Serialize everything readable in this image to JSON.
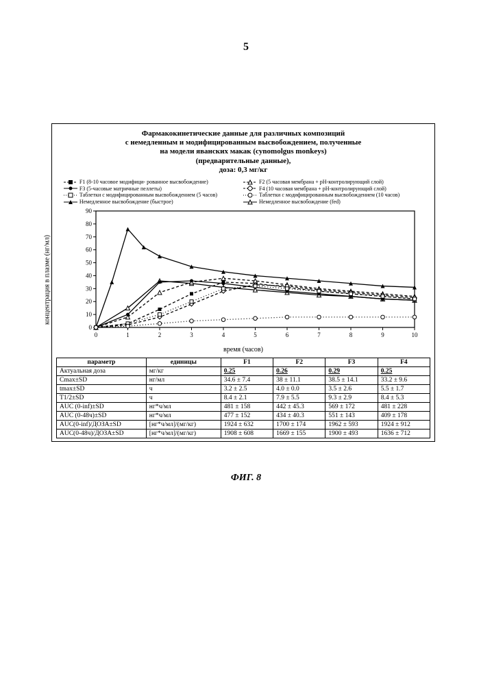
{
  "page_number": "5",
  "figure_caption": "ФИГ. 8",
  "title_lines": [
    "Фармакокинетические данные для различных композиций",
    "с немедленным и модифицированным высвобождением, полученные",
    "на модели яванских макак (cynomolgus monkeys)",
    "(предварительные данные),",
    "доза: 0,3 мг/кг"
  ],
  "legend": [
    {
      "marker": "dash-sq",
      "text": "F1 (8-10 часовое модифици-\nрованное высвобождение)"
    },
    {
      "marker": "dash-tri",
      "text": "F2 (5 часовая мембрана + pH-контролирующий слой)"
    },
    {
      "marker": "line-dot",
      "text": "F3 (5-часовые матричные пеллеты)"
    },
    {
      "marker": "dash-dia",
      "text": "F4 (10 часовая мембрана + pH-контролирующий слой)"
    },
    {
      "marker": "sq",
      "text": "Таблетки с модифицированным\nвысвобождением (5 часов)"
    },
    {
      "marker": "circ",
      "text": "Таблетки с модифицированным высвобождением (10 часов)"
    },
    {
      "marker": "tri-fill",
      "text": "Немедленное высвобождение\n(быстрое)"
    },
    {
      "marker": "tri-open",
      "text": "Немедленное высвобождение (fed)"
    }
  ],
  "chart": {
    "type": "line",
    "ylabel": "концентрация в плазме (нг/мл)",
    "xlabel": "время (часов)",
    "xlim": [
      0,
      10
    ],
    "xtick_step": 1,
    "ylim": [
      0,
      90
    ],
    "ytick_step": 10,
    "background": "#ffffff",
    "axis_color": "#000000",
    "series": [
      {
        "name": "ImmediateFast",
        "color": "#000000",
        "style": "solid",
        "marker": "tri-fill",
        "x": [
          0,
          0.5,
          1,
          1.5,
          2,
          3,
          4,
          5,
          6,
          7,
          8,
          9,
          10
        ],
        "y": [
          0,
          35,
          76,
          62,
          55,
          47,
          43,
          40,
          38,
          36,
          34,
          32,
          31
        ]
      },
      {
        "name": "ImmediateFed",
        "color": "#000000",
        "style": "solid",
        "marker": "tri-open",
        "x": [
          0,
          1,
          2,
          3,
          4,
          5,
          6,
          7,
          8,
          9,
          10
        ],
        "y": [
          0,
          15,
          36,
          34,
          31,
          29,
          27,
          25,
          24,
          22,
          21
        ]
      },
      {
        "name": "F1",
        "color": "#000000",
        "style": "dash",
        "marker": "sq-fill",
        "x": [
          0,
          1,
          2,
          3,
          4,
          5,
          6,
          7,
          8,
          9,
          10
        ],
        "y": [
          0,
          3,
          14,
          26,
          35,
          34,
          31,
          28,
          26,
          24,
          22
        ]
      },
      {
        "name": "F2",
        "color": "#000000",
        "style": "dash",
        "marker": "tri-open",
        "x": [
          0,
          1,
          2,
          3,
          4,
          5,
          6,
          7,
          8,
          9,
          10
        ],
        "y": [
          0,
          8,
          27,
          35,
          38,
          36,
          33,
          30,
          28,
          26,
          24
        ]
      },
      {
        "name": "F3",
        "color": "#000000",
        "style": "solid",
        "marker": "dot",
        "x": [
          0,
          1,
          2,
          3,
          4,
          5,
          6,
          7,
          8,
          9,
          10
        ],
        "y": [
          0,
          10,
          35,
          36,
          34,
          31,
          28,
          26,
          24,
          22,
          21
        ]
      },
      {
        "name": "F4",
        "color": "#000000",
        "style": "dash",
        "marker": "dia",
        "x": [
          0,
          1,
          2,
          3,
          4,
          5,
          6,
          7,
          8,
          9,
          10
        ],
        "y": [
          0,
          2,
          8,
          18,
          28,
          33,
          32,
          29,
          27,
          25,
          23
        ]
      },
      {
        "name": "MRtab5",
        "color": "#000000",
        "style": "dot",
        "marker": "sq-open",
        "x": [
          0,
          1,
          2,
          3,
          4,
          5,
          6,
          7,
          8,
          9,
          10
        ],
        "y": [
          0,
          3,
          10,
          20,
          30,
          32,
          30,
          28,
          26,
          24,
          22
        ]
      },
      {
        "name": "MRtab10",
        "color": "#000000",
        "style": "dot",
        "marker": "circ",
        "x": [
          0,
          1,
          2,
          3,
          4,
          5,
          6,
          7,
          8,
          9,
          10
        ],
        "y": [
          0,
          1,
          3,
          5,
          6,
          7,
          8,
          8,
          8,
          8,
          8
        ]
      }
    ]
  },
  "table": {
    "header": [
      "параметр",
      "единицы",
      "F1",
      "F2",
      "F3",
      "F4"
    ],
    "rows": [
      [
        "Актуальная доза",
        "мг/кг",
        "0.25",
        "0.26",
        "0.29",
        "0.25"
      ],
      [
        "Cmax±SD",
        "нг/мл",
        "34.6 ± 7.4",
        "38 ± 11.1",
        "38.5 ± 14.1",
        "33.2 ± 9.6"
      ],
      [
        "tmax±SD",
        "ч",
        "3.2 ± 2.5",
        "4.0 ± 0.0",
        "3.5 ± 2.6",
        "5.5 ± 1.7"
      ],
      [
        "T1/2±SD",
        "ч",
        "8.4 ± 2.1",
        "7.9 ± 5.5",
        "9.3 ± 2.9",
        "8.4 ± 5.3"
      ],
      [
        "AUC (0-inf)±SD",
        "нг*ч/мл",
        "481 ± 158",
        "442 ± 45.3",
        "569 ± 172",
        "481 ± 228"
      ],
      [
        "AUC (0-48ч)±SD",
        "нг*ч/мл",
        "477 ± 152",
        "434 ± 40.3",
        "551 ± 143",
        "409 ± 178"
      ],
      [
        "AUC(0-inf)/ДОЗА±SD",
        "[нг*ч/мл]/(мг/кг)",
        "1924 ± 632",
        "1700 ± 174",
        "1962 ± 593",
        "1924 ± 912"
      ],
      [
        "AUC(0-48ч)/ДОЗА±SD",
        "[нг*ч/мл]/(мг/кг)",
        "1908 ± 608",
        "1669 ± 155",
        "1900 ± 493",
        "1636 ± 712"
      ]
    ]
  }
}
